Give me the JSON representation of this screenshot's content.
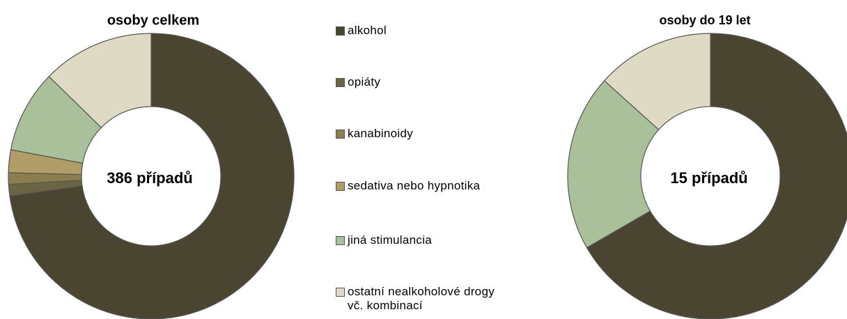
{
  "chart_data": [
    {
      "type": "pie",
      "title": "osoby celkem",
      "center_label": "386 případů",
      "categories": [
        "alkohol",
        "opiáty",
        "kanabinoidy",
        "sedativa nebo hypnotika",
        "jiná stimulancia",
        "ostatní nealkoholové drogy\nvč. kombinací"
      ],
      "values": [
        281,
        5,
        5,
        10,
        36,
        49
      ],
      "colors": [
        "#4a4530",
        "#6b6445",
        "#8a7d4e",
        "#b09d68",
        "#a9c09a",
        "#dedac4"
      ]
    },
    {
      "type": "pie",
      "title": "osoby do 19 let",
      "center_label": "15 případů",
      "categories": [
        "alkohol",
        "opiáty",
        "kanabinoidy",
        "sedativa nebo hypnotika",
        "jiná stimulancia",
        "ostatní nealkoholové drogy\nvč. kombinací"
      ],
      "values": [
        10,
        0,
        0,
        0,
        3,
        2
      ],
      "colors": [
        "#4a4530",
        "#6b6445",
        "#8a7d4e",
        "#b09d68",
        "#a9c09a",
        "#dedac4"
      ]
    }
  ]
}
